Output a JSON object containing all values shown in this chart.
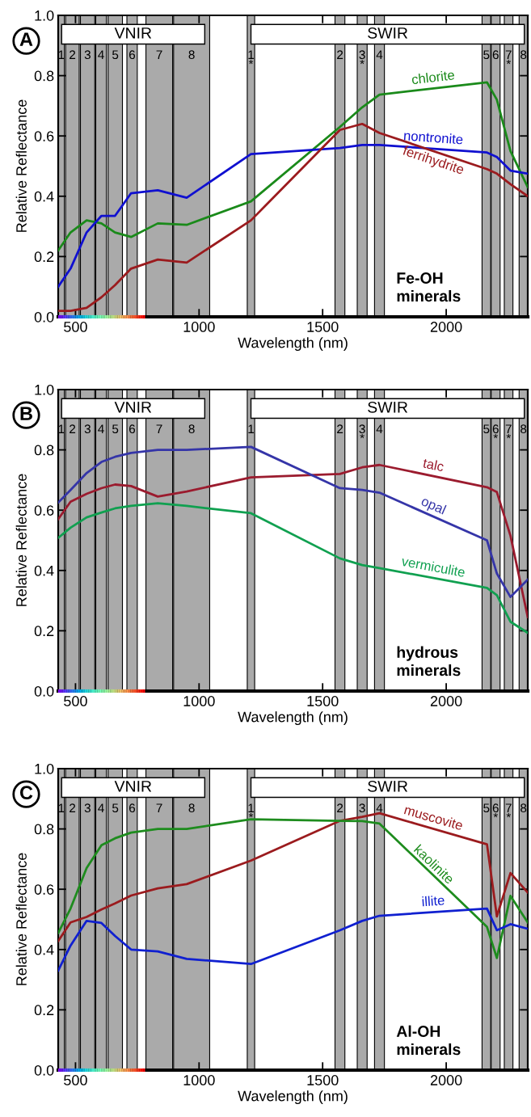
{
  "chart_data": [
    {
      "type": "line",
      "title": "A",
      "xlabel": "Wavelength (nm)",
      "ylabel": "Relative Reflectance",
      "xlim": [
        430,
        2330
      ],
      "ylim": [
        0,
        1
      ],
      "xticks": [
        500,
        1000,
        1500,
        2000
      ],
      "yticks": [
        {
          "value": 0,
          "label": "0.0"
        },
        {
          "value": 0.2,
          "label": "0.2"
        },
        {
          "value": 0.4,
          "label": "0.4"
        },
        {
          "value": 0.6,
          "label": "0.6"
        },
        {
          "value": 0.8,
          "label": "0.8"
        },
        {
          "value": 1,
          "label": "1.0"
        }
      ],
      "x": [
        430,
        480,
        545,
        605,
        660,
        725,
        833,
        950,
        1210,
        1570,
        1660,
        1730,
        2165,
        2205,
        2260,
        2330
      ],
      "series": [
        {
          "name": "chlorite",
          "color": "#1a8a1a",
          "values": [
            0.22,
            0.28,
            0.32,
            0.31,
            0.28,
            0.265,
            0.31,
            0.305,
            0.383,
            0.63,
            0.695,
            0.737,
            0.778,
            0.72,
            0.55,
            0.43
          ]
        },
        {
          "name": "nontronite",
          "color": "#1010d0",
          "values": [
            0.1,
            0.16,
            0.28,
            0.335,
            0.335,
            0.41,
            0.42,
            0.395,
            0.54,
            0.56,
            0.57,
            0.57,
            0.545,
            0.53,
            0.485,
            0.475
          ]
        },
        {
          "name": "ferrihydrite",
          "color": "#9b1b1e",
          "values": [
            0.02,
            0.02,
            0.03,
            0.065,
            0.105,
            0.16,
            0.19,
            0.18,
            0.32,
            0.62,
            0.64,
            0.61,
            0.49,
            0.475,
            0.44,
            0.4
          ]
        }
      ],
      "bands": [
        {
          "axis": "x",
          "from": 430,
          "to": 455,
          "label": "1",
          "color": "#aaaaaa"
        },
        {
          "axis": "x",
          "from": 460,
          "to": 515,
          "label": "2",
          "color": "#aaaaaa"
        },
        {
          "axis": "x",
          "from": 520,
          "to": 578,
          "label": "3",
          "color": "#aaaaaa"
        },
        {
          "axis": "x",
          "from": 582,
          "to": 625,
          "label": "4",
          "color": "#aaaaaa"
        },
        {
          "axis": "x",
          "from": 632,
          "to": 690,
          "label": "5",
          "color": "#aaaaaa"
        },
        {
          "axis": "x",
          "from": 708,
          "to": 750,
          "label": "6",
          "color": "#aaaaaa"
        },
        {
          "axis": "x",
          "from": 785,
          "to": 893,
          "label": "7",
          "color": "#aaaaaa"
        },
        {
          "axis": "x",
          "from": 897,
          "to": 1043,
          "label": "8",
          "color": "#aaaaaa"
        },
        {
          "axis": "x",
          "from": 1195,
          "to": 1225,
          "label": "1\n*",
          "color": "#aaaaaa"
        },
        {
          "axis": "x",
          "from": 1550,
          "to": 1590,
          "label": "2",
          "color": "#aaaaaa"
        },
        {
          "axis": "x",
          "from": 1640,
          "to": 1680,
          "label": "3\n*",
          "color": "#aaaaaa"
        },
        {
          "axis": "x",
          "from": 1710,
          "to": 1750,
          "label": "4",
          "color": "#aaaaaa"
        },
        {
          "axis": "x",
          "from": 2145,
          "to": 2180,
          "label": "5",
          "color": "#aaaaaa"
        },
        {
          "axis": "x",
          "from": 2182,
          "to": 2218,
          "label": "6",
          "color": "#aaaaaa"
        },
        {
          "axis": "x",
          "from": 2235,
          "to": 2270,
          "label": "7\n*",
          "color": "#aaaaaa"
        },
        {
          "axis": "x",
          "from": 2295,
          "to": 2330,
          "label": "8",
          "color": "#aaaaaa"
        },
        {
          "axis": "x",
          "from": 444,
          "to": 1023,
          "label": "VNIR",
          "color": "#ffffff"
        },
        {
          "axis": "x",
          "from": 1210,
          "to": 2316,
          "label": "SWIR",
          "color": "#ffffff"
        }
      ],
      "annotations": [
        "Fe-OH\nminerals"
      ]
    },
    {
      "type": "line",
      "title": "B",
      "xlabel": "Wavelength (nm)",
      "ylabel": "Relative Reflectance",
      "xlim": [
        430,
        2330
      ],
      "ylim": [
        0,
        1
      ],
      "xticks": [
        500,
        1000,
        1500,
        2000
      ],
      "yticks": [
        {
          "value": 0,
          "label": "0.0"
        },
        {
          "value": 0.2,
          "label": "0.2"
        },
        {
          "value": 0.4,
          "label": "0.4"
        },
        {
          "value": 0.6,
          "label": "0.6"
        },
        {
          "value": 0.8,
          "label": "0.8"
        },
        {
          "value": 1,
          "label": "1.0"
        }
      ],
      "x": [
        430,
        480,
        545,
        605,
        660,
        725,
        833,
        950,
        1210,
        1570,
        1660,
        1730,
        2165,
        2205,
        2260,
        2330
      ],
      "series": [
        {
          "name": "talc",
          "color": "#9b1b2e",
          "values": [
            0.57,
            0.628,
            0.654,
            0.673,
            0.685,
            0.68,
            0.645,
            0.662,
            0.709,
            0.72,
            0.742,
            0.75,
            0.676,
            0.66,
            0.515,
            0.245
          ]
        },
        {
          "name": "opal",
          "color": "#3535a8",
          "values": [
            0.625,
            0.667,
            0.723,
            0.76,
            0.777,
            0.79,
            0.8,
            0.8,
            0.81,
            0.673,
            0.667,
            0.658,
            0.5,
            0.39,
            0.312,
            0.37
          ]
        },
        {
          "name": "vermiculite",
          "color": "#10a050",
          "values": [
            0.508,
            0.542,
            0.576,
            0.592,
            0.606,
            0.614,
            0.623,
            0.614,
            0.59,
            0.44,
            0.418,
            0.408,
            0.342,
            0.318,
            0.23,
            0.193
          ]
        }
      ],
      "bands": [
        {
          "axis": "x",
          "from": 430,
          "to": 455,
          "label": "1",
          "color": "#aaaaaa"
        },
        {
          "axis": "x",
          "from": 460,
          "to": 515,
          "label": "2",
          "color": "#aaaaaa"
        },
        {
          "axis": "x",
          "from": 520,
          "to": 578,
          "label": "3",
          "color": "#aaaaaa"
        },
        {
          "axis": "x",
          "from": 582,
          "to": 625,
          "label": "4",
          "color": "#aaaaaa"
        },
        {
          "axis": "x",
          "from": 632,
          "to": 690,
          "label": "5",
          "color": "#aaaaaa"
        },
        {
          "axis": "x",
          "from": 708,
          "to": 750,
          "label": "6",
          "color": "#aaaaaa"
        },
        {
          "axis": "x",
          "from": 785,
          "to": 893,
          "label": "7",
          "color": "#aaaaaa"
        },
        {
          "axis": "x",
          "from": 897,
          "to": 1043,
          "label": "8",
          "color": "#aaaaaa"
        },
        {
          "axis": "x",
          "from": 1195,
          "to": 1225,
          "label": "1",
          "color": "#aaaaaa"
        },
        {
          "axis": "x",
          "from": 1550,
          "to": 1590,
          "label": "2",
          "color": "#aaaaaa"
        },
        {
          "axis": "x",
          "from": 1640,
          "to": 1680,
          "label": "3\n*",
          "color": "#aaaaaa"
        },
        {
          "axis": "x",
          "from": 1710,
          "to": 1750,
          "label": "4",
          "color": "#aaaaaa"
        },
        {
          "axis": "x",
          "from": 2145,
          "to": 2180,
          "label": "5",
          "color": "#aaaaaa"
        },
        {
          "axis": "x",
          "from": 2182,
          "to": 2218,
          "label": "6\n*",
          "color": "#aaaaaa"
        },
        {
          "axis": "x",
          "from": 2235,
          "to": 2270,
          "label": "7\n*",
          "color": "#aaaaaa"
        },
        {
          "axis": "x",
          "from": 2295,
          "to": 2330,
          "label": "8",
          "color": "#aaaaaa"
        },
        {
          "axis": "x",
          "from": 444,
          "to": 1023,
          "label": "VNIR",
          "color": "#ffffff"
        },
        {
          "axis": "x",
          "from": 1210,
          "to": 2316,
          "label": "SWIR",
          "color": "#ffffff"
        }
      ],
      "annotations": [
        "hydrous\nminerals"
      ]
    },
    {
      "type": "line",
      "title": "C",
      "xlabel": "Wavelength (nm)",
      "ylabel": "Relative Reflectance",
      "xlim": [
        430,
        2330
      ],
      "ylim": [
        0,
        1
      ],
      "xticks": [
        500,
        1000,
        1500,
        2000
      ],
      "yticks": [
        {
          "value": 0,
          "label": "0.0"
        },
        {
          "value": 0.2,
          "label": "0.2"
        },
        {
          "value": 0.4,
          "label": "0.4"
        },
        {
          "value": 0.6,
          "label": "0.6"
        },
        {
          "value": 0.8,
          "label": "0.8"
        },
        {
          "value": 1,
          "label": "1.0"
        }
      ],
      "x": [
        430,
        480,
        545,
        605,
        660,
        725,
        833,
        950,
        1210,
        1570,
        1660,
        1730,
        2165,
        2205,
        2260,
        2330
      ],
      "series": [
        {
          "name": "muscovite",
          "color": "#9b1b1e",
          "values": [
            0.428,
            0.49,
            0.508,
            0.533,
            0.553,
            0.579,
            0.603,
            0.617,
            0.695,
            0.827,
            0.84,
            0.852,
            0.749,
            0.51,
            0.654,
            0.589
          ]
        },
        {
          "name": "kaolinite",
          "color": "#1e8c1e",
          "values": [
            0.455,
            0.536,
            0.67,
            0.746,
            0.769,
            0.788,
            0.8,
            0.8,
            0.832,
            0.827,
            0.826,
            0.818,
            0.475,
            0.372,
            0.578,
            0.49
          ]
        },
        {
          "name": "illite",
          "color": "#1020d0",
          "values": [
            0.33,
            0.413,
            0.495,
            0.488,
            0.445,
            0.4,
            0.394,
            0.369,
            0.352,
            0.464,
            0.495,
            0.512,
            0.536,
            0.464,
            0.484,
            0.469
          ]
        }
      ],
      "bands": [
        {
          "axis": "x",
          "from": 430,
          "to": 455,
          "label": "1",
          "color": "#aaaaaa"
        },
        {
          "axis": "x",
          "from": 460,
          "to": 515,
          "label": "2",
          "color": "#aaaaaa"
        },
        {
          "axis": "x",
          "from": 520,
          "to": 578,
          "label": "3",
          "color": "#aaaaaa"
        },
        {
          "axis": "x",
          "from": 582,
          "to": 625,
          "label": "4",
          "color": "#aaaaaa"
        },
        {
          "axis": "x",
          "from": 632,
          "to": 690,
          "label": "5",
          "color": "#aaaaaa"
        },
        {
          "axis": "x",
          "from": 708,
          "to": 750,
          "label": "6",
          "color": "#aaaaaa"
        },
        {
          "axis": "x",
          "from": 785,
          "to": 893,
          "label": "7",
          "color": "#aaaaaa"
        },
        {
          "axis": "x",
          "from": 897,
          "to": 1043,
          "label": "8",
          "color": "#aaaaaa"
        },
        {
          "axis": "x",
          "from": 1195,
          "to": 1225,
          "label": "1\n*",
          "color": "#aaaaaa"
        },
        {
          "axis": "x",
          "from": 1550,
          "to": 1590,
          "label": "2",
          "color": "#aaaaaa"
        },
        {
          "axis": "x",
          "from": 1640,
          "to": 1680,
          "label": "3",
          "color": "#aaaaaa"
        },
        {
          "axis": "x",
          "from": 1710,
          "to": 1750,
          "label": "4",
          "color": "#aaaaaa"
        },
        {
          "axis": "x",
          "from": 2145,
          "to": 2180,
          "label": "5",
          "color": "#aaaaaa"
        },
        {
          "axis": "x",
          "from": 2182,
          "to": 2218,
          "label": "6\n*",
          "color": "#aaaaaa"
        },
        {
          "axis": "x",
          "from": 2235,
          "to": 2270,
          "label": "7\n*",
          "color": "#aaaaaa"
        },
        {
          "axis": "x",
          "from": 2295,
          "to": 2330,
          "label": "8",
          "color": "#aaaaaa"
        },
        {
          "axis": "x",
          "from": 444,
          "to": 1023,
          "label": "VNIR",
          "color": "#ffffff"
        },
        {
          "axis": "x",
          "from": 1210,
          "to": 2316,
          "label": "SWIR",
          "color": "#ffffff"
        }
      ],
      "annotations": [
        "Al-OH\nminerals"
      ]
    }
  ]
}
